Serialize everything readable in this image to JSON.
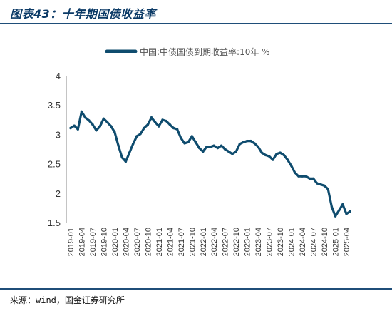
{
  "header": {
    "title": "图表43：十年期国债收益率"
  },
  "footer": {
    "source": "来源：wind，国金证券研究所"
  },
  "colors": {
    "series": "#0f4c6e",
    "rule": "#1f4e79"
  },
  "chart_data": {
    "type": "line",
    "title": "",
    "xlabel": "",
    "ylabel": "",
    "ylim": [
      1.5,
      4
    ],
    "y_ticks": [
      "1.5",
      "2",
      "2.5",
      "3",
      "3.5",
      "4"
    ],
    "grid": false,
    "legend_position": "top-center",
    "x_ticks": [
      "2019-01",
      "2019-04",
      "2019-07",
      "2019-10",
      "2020-01",
      "2020-04",
      "2020-07",
      "2020-10",
      "2021-01",
      "2021-04",
      "2021-07",
      "2021-10",
      "2022-01",
      "2022-04",
      "2022-07",
      "2022-10",
      "2023-01",
      "2023-04",
      "2023-07",
      "2023-10",
      "2024-01",
      "2024-04",
      "2024-07",
      "2024-10",
      "2025-01",
      "2025-04"
    ],
    "series": [
      {
        "name": "中国:中债国债到期收益率:10年 %",
        "x": [
          "2019-01",
          "2019-02",
          "2019-03",
          "2019-04",
          "2019-05",
          "2019-06",
          "2019-07",
          "2019-08",
          "2019-09",
          "2019-10",
          "2019-11",
          "2019-12",
          "2020-01",
          "2020-02",
          "2020-03",
          "2020-04",
          "2020-05",
          "2020-06",
          "2020-07",
          "2020-08",
          "2020-09",
          "2020-10",
          "2020-11",
          "2020-12",
          "2021-01",
          "2021-02",
          "2021-03",
          "2021-04",
          "2021-05",
          "2021-06",
          "2021-07",
          "2021-08",
          "2021-09",
          "2021-10",
          "2021-11",
          "2021-12",
          "2022-01",
          "2022-02",
          "2022-03",
          "2022-04",
          "2022-05",
          "2022-06",
          "2022-07",
          "2022-08",
          "2022-09",
          "2022-10",
          "2022-11",
          "2022-12",
          "2023-01",
          "2023-02",
          "2023-03",
          "2023-04",
          "2023-05",
          "2023-06",
          "2023-07",
          "2023-08",
          "2023-09",
          "2023-10",
          "2023-11",
          "2023-12",
          "2024-01",
          "2024-02",
          "2024-03",
          "2024-04",
          "2024-05",
          "2024-06",
          "2024-07",
          "2024-08",
          "2024-09",
          "2024-10",
          "2024-11",
          "2024-12",
          "2025-01",
          "2025-02",
          "2025-03",
          "2025-04",
          "2025-05"
        ],
        "values": [
          3.12,
          3.16,
          3.1,
          3.4,
          3.3,
          3.25,
          3.18,
          3.08,
          3.15,
          3.28,
          3.22,
          3.15,
          3.05,
          2.82,
          2.62,
          2.55,
          2.7,
          2.85,
          2.98,
          3.02,
          3.12,
          3.18,
          3.3,
          3.22,
          3.15,
          3.26,
          3.24,
          3.18,
          3.12,
          3.1,
          2.95,
          2.86,
          2.88,
          2.98,
          2.88,
          2.78,
          2.72,
          2.8,
          2.8,
          2.82,
          2.78,
          2.82,
          2.76,
          2.72,
          2.68,
          2.72,
          2.85,
          2.88,
          2.9,
          2.9,
          2.86,
          2.8,
          2.7,
          2.66,
          2.64,
          2.58,
          2.68,
          2.7,
          2.66,
          2.58,
          2.48,
          2.36,
          2.3,
          2.3,
          2.3,
          2.26,
          2.26,
          2.18,
          2.16,
          2.14,
          2.08,
          1.78,
          1.62,
          1.72,
          1.82,
          1.66,
          1.7
        ]
      }
    ]
  }
}
